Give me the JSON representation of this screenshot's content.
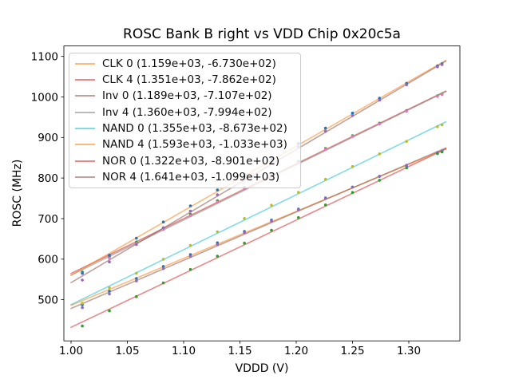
{
  "chart_data": {
    "type": "scatter",
    "title": "ROSC Bank B right vs VDD Chip 0x20c5a",
    "xlabel": "VDDD (V)",
    "ylabel": "ROSC (MHz)",
    "grid": false,
    "legend_position": "upper left",
    "xlim": [
      0.9936,
      1.3454
    ],
    "ylim": [
      398.4,
      1125.8
    ],
    "x_ticks": [
      1.0,
      1.05,
      1.1,
      1.15,
      1.2,
      1.25,
      1.3
    ],
    "x_tick_labels": [
      "1.00",
      "1.05",
      "1.10",
      "1.15",
      "1.20",
      "1.25",
      "1.30"
    ],
    "y_ticks": [
      500,
      600,
      700,
      800,
      900,
      1000,
      1100
    ],
    "y_tick_labels": [
      "500",
      "600",
      "700",
      "800",
      "900",
      "1000",
      "1100"
    ],
    "fit_line_span_v": [
      1.0,
      1.333
    ],
    "x": [
      1.01,
      1.034,
      1.058,
      1.082,
      1.106,
      1.13,
      1.154,
      1.178,
      1.202,
      1.226,
      1.25,
      1.274,
      1.298,
      1.3255,
      1.3295
    ],
    "series": [
      {
        "name": "CLK 0",
        "legend_label": "CLK 0 (1.159e+03, -6.730e+02)",
        "slope": 1159,
        "intercept": -673.0,
        "line_color": "#ff7f0e",
        "marker_color": "#1f77b4",
        "y": [
          487.6,
          520.9,
          552.2,
          582.0,
          611.4,
          640.2,
          668.5,
          696.3,
          723.6,
          750.9,
          777.8,
          804.1,
          830.4,
          861.3,
          864.9
        ]
      },
      {
        "name": "CLK 4",
        "legend_label": "CLK 4 (1.351e+03, -7.862e+02)",
        "slope": 1351,
        "intercept": -786.2,
        "line_color": "#d62728",
        "marker_color": "#2ca02c",
        "y": [
          568.3,
          606.2,
          642.2,
          676.6,
          710.5,
          743.9,
          776.9,
          809.3,
          841.2,
          873.1,
          904.6,
          935.5,
          966.4,
          1002.6,
          1007.0
        ]
      },
      {
        "name": "Inv 0",
        "legend_label": "Inv 0 (1.189e+03, -7.107e+02)",
        "slope": 1189,
        "intercept": -710.7,
        "line_color": "#8c564b",
        "marker_color": "#9467bd",
        "y": [
          480.2,
          514.2,
          546.3,
          576.8,
          606.8,
          636.4,
          665.4,
          693.9,
          722.0,
          750.0,
          777.6,
          804.6,
          831.6,
          863.3,
          867.1
        ]
      },
      {
        "name": "Inv 4",
        "legend_label": "Inv 4 (1.360e+03, -7.994e+02)",
        "slope": 1360,
        "intercept": -799.4,
        "line_color": "#7f7f7f",
        "marker_color": "#e377c2",
        "y": [
          564.2,
          602.3,
          638.5,
          673.1,
          707.3,
          740.9,
          774.0,
          806.7,
          838.8,
          871.0,
          902.6,
          933.7,
          964.9,
          1001.3,
          1005.7
        ]
      },
      {
        "name": "NAND 0",
        "legend_label": "NAND 0 (1.355e+03, -8.673e+02)",
        "slope": 1355,
        "intercept": -867.3,
        "line_color": "#17becf",
        "marker_color": "#bcbd22",
        "y": [
          491.3,
          529.3,
          565.3,
          599.8,
          633.8,
          667.4,
          700.4,
          732.9,
          764.9,
          796.9,
          828.5,
          859.5,
          890.5,
          926.8,
          931.2
        ]
      },
      {
        "name": "NAND 4",
        "legend_label": "NAND 4 (1.593e+03, -1.033e+03)",
        "slope": 1593,
        "intercept": -1033.0,
        "line_color": "#ff7f0e",
        "marker_color": "#1f77b4",
        "y": [
          565.9,
          609.7,
          651.4,
          691.6,
          731.4,
          770.6,
          809.3,
          847.6,
          885.3,
          923.0,
          960.3,
          997.0,
          1033.7,
          1076.5,
          1081.9
        ]
      },
      {
        "name": "NOR 0",
        "legend_label": "NOR 0 (1.322e+03, -8.901e+02)",
        "slope": 1322,
        "intercept": -890.1,
        "line_color": "#d62728",
        "marker_color": "#2ca02c",
        "y": [
          435.1,
          472.4,
          507.6,
          541.3,
          574.5,
          607.3,
          639.5,
          671.2,
          702.5,
          733.7,
          764.4,
          794.6,
          824.9,
          860.2,
          864.5
        ]
      },
      {
        "name": "NOR 4",
        "legend_label": "NOR 4 (1.641e+03, -1.099e+03)",
        "slope": 1641,
        "intercept": -1099.0,
        "line_color": "#8c564b",
        "marker_color": "#9467bd",
        "y": [
          548.4,
          593.3,
          636.2,
          677.6,
          718.5,
          758.8,
          798.7,
          838.1,
          877.0,
          915.9,
          954.3,
          992.1,
          1030.0,
          1074.2,
          1079.7
        ]
      }
    ]
  }
}
